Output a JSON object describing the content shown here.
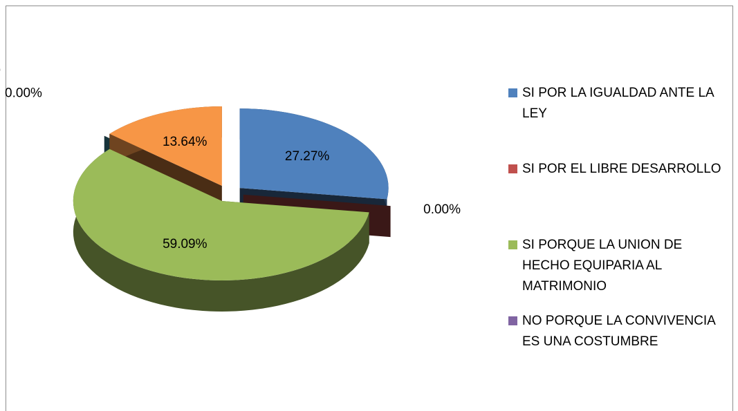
{
  "chart_data": {
    "type": "pie3d",
    "categories": [
      "SI POR LA IGUALDAD ANTE LA LEY",
      "SI POR EL LIBRE DESARROLLO",
      "SI PORQUE LA UNION DE HECHO EQUIPARIA AL MATRIMONIO",
      "NO PORQUE LA CONVIVENCIA ES UNA COSTUMBRE",
      null,
      null
    ],
    "values": [
      27.27,
      0,
      59.09,
      0,
      0,
      13.64
    ],
    "value_labels": [
      "27.27%",
      "0.00%",
      "59.09%",
      "0.00%",
      "0.00%",
      "13.64%"
    ],
    "colors": [
      "#4f81bd",
      "#c0504d",
      "#9bbb59",
      "#8064a2",
      "#4bacc6",
      "#f79646"
    ],
    "legend": "right"
  }
}
